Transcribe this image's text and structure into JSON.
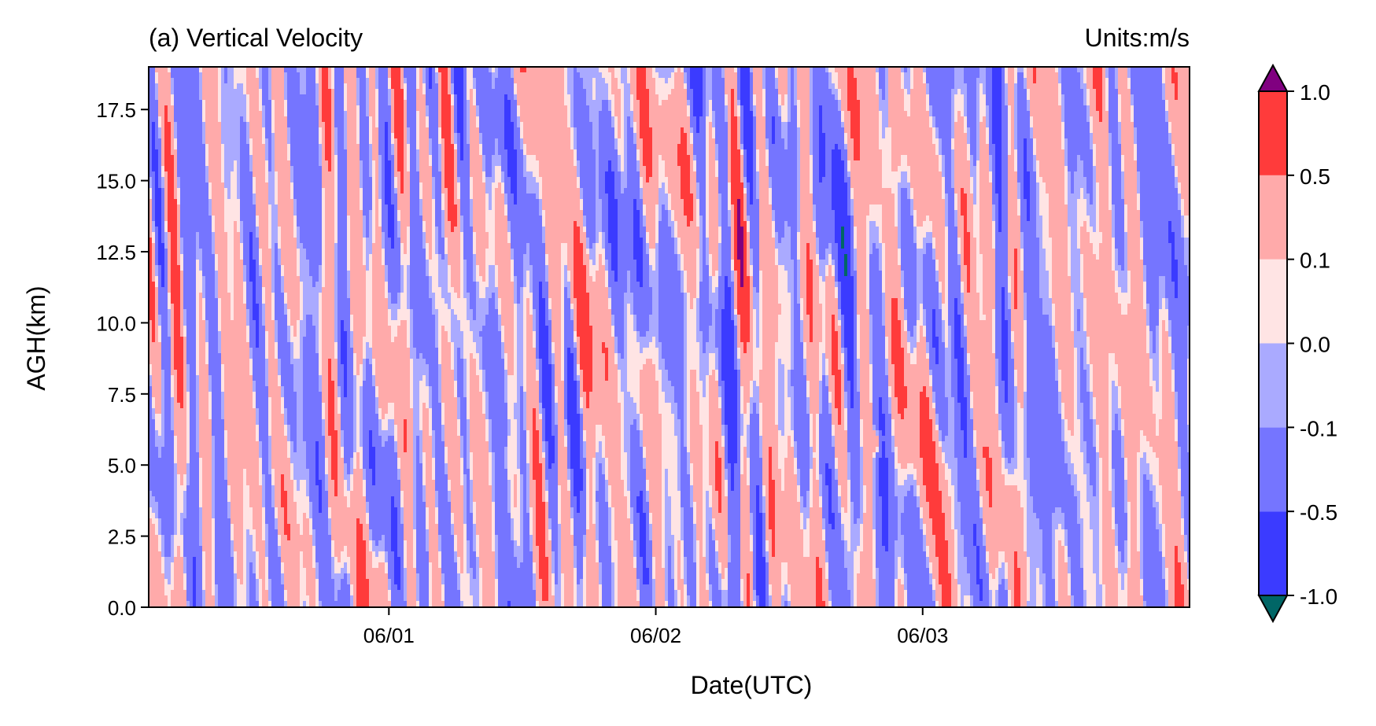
{
  "chart_data": {
    "type": "heatmap",
    "title_left": "(a) Vertical Velocity",
    "title_right": "Units:m/s",
    "xlabel": "Date(UTC)",
    "ylabel": "AGH(km)",
    "x_tick_labels": [
      "06/01",
      "06/02",
      "06/03"
    ],
    "y_ticks": [
      0.0,
      2.5,
      5.0,
      7.5,
      10.0,
      12.5,
      15.0,
      17.5
    ],
    "y_tick_labels": [
      "0.0",
      "2.5",
      "5.0",
      "7.5",
      "10.0",
      "12.5",
      "15.0",
      "17.5"
    ],
    "ylim": [
      0,
      19
    ],
    "x_days": 3.9,
    "colorbar": {
      "levels": [
        -1.0,
        -0.5,
        -0.1,
        0.0,
        0.1,
        0.5,
        1.0
      ],
      "tick_labels": [
        "-1.0",
        "-0.5",
        "-0.1",
        "0.0",
        "0.1",
        "0.5",
        "1.0"
      ],
      "colors": [
        "#3b3bff",
        "#7575ff",
        "#aaaaff",
        "#ffe4e4",
        "#ffaaaa",
        "#ff3b3b"
      ],
      "under_color": "#006666",
      "over_color": "#800080"
    }
  }
}
